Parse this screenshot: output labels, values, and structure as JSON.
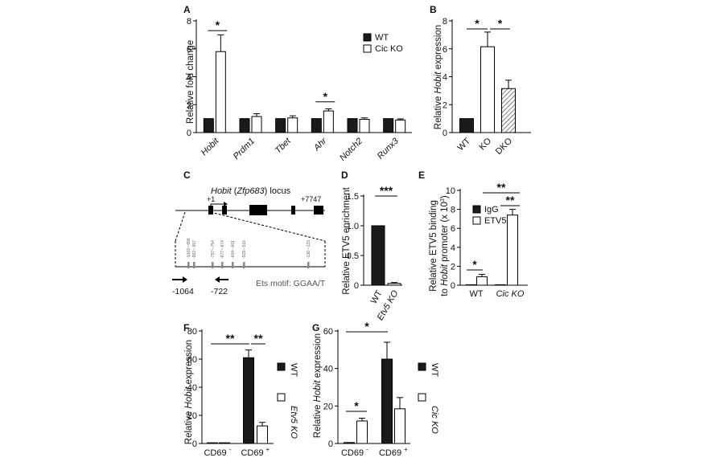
{
  "panels": {
    "A": {
      "letter": "A",
      "ylabel": "Relative fold change",
      "ylim": [
        0,
        8
      ],
      "yticks": [
        "0",
        "2",
        "4",
        "6",
        "8"
      ],
      "legend": [
        "WT",
        "Cic KO"
      ],
      "categories": [
        "Hobit",
        "Prdm1",
        "Tbet",
        "Ahr",
        "Notch2",
        "Runx3"
      ],
      "series": [
        {
          "name": "WT",
          "values": [
            1.0,
            1.0,
            1.0,
            1.0,
            1.0,
            1.0
          ],
          "errors": [
            0,
            0,
            0,
            0,
            0,
            0
          ],
          "color": "#1a1a1a"
        },
        {
          "name": "Cic KO",
          "values": [
            5.8,
            1.15,
            1.05,
            1.55,
            0.95,
            0.9
          ],
          "errors": [
            1.2,
            0.2,
            0.15,
            0.15,
            0.1,
            0.08
          ],
          "color": "#ffffff"
        }
      ],
      "sig": [
        "*",
        "*"
      ]
    },
    "B": {
      "letter": "B",
      "ylabel_pre": "Relative ",
      "ylabel_it": "Hobit",
      "ylabel_post": " expression",
      "ylim": [
        0,
        8
      ],
      "yticks": [
        "0",
        "2",
        "4",
        "6",
        "8"
      ],
      "categories": [
        "WT",
        "KO",
        "DKO"
      ],
      "values": [
        1.0,
        6.15,
        3.15
      ],
      "errors": [
        0,
        1.05,
        0.6
      ],
      "sig": [
        "*",
        "*"
      ]
    },
    "C": {
      "letter": "C",
      "locus_it": "Hobit",
      "locus_paren_open": " (",
      "locus_it2": "Zfp683",
      "locus_post": ") locus",
      "tss": "+1",
      "end": "+7747",
      "primer_left": "-1064",
      "primer_right": "-722",
      "motif": "Ets motif: GGAA/T",
      "site_labels": [
        "-1003~-998",
        "-962~-957",
        "-757~-754",
        "-677~-674",
        "-604~-601",
        "-519~-516",
        "-136~-133"
      ]
    },
    "D": {
      "letter": "D",
      "ylabel": "Relative ETV5 enrichment",
      "ylim": [
        0,
        1.5
      ],
      "yticks": [
        "0",
        "0.5",
        "1.0",
        "1.5"
      ],
      "categories": [
        "WT",
        "Etv5 KO"
      ],
      "values": [
        1.0,
        0.03
      ],
      "errors": [
        0,
        0.015
      ],
      "sig": [
        "***"
      ]
    },
    "E": {
      "letter": "E",
      "ylabel1": "Relative ETV5 binding",
      "ylabel2_pre": "to ",
      "ylabel2_it": "Hobit",
      "ylabel2_post": " promoter (x 10",
      "ylabel2_sup": "3",
      "ylabel2_end": ")",
      "ylim": [
        0,
        10
      ],
      "yticks": [
        "0",
        "2",
        "4",
        "6",
        "8",
        "10"
      ],
      "legend": [
        "IgG",
        "ETV5"
      ],
      "categories": [
        "WT",
        "Cic KO"
      ],
      "series": [
        {
          "name": "IgG",
          "values": [
            0.05,
            0.05
          ],
          "errors": [
            0,
            0
          ]
        },
        {
          "name": "ETV5",
          "values": [
            0.9,
            7.4
          ],
          "errors": [
            0.25,
            0.6
          ]
        }
      ],
      "sig": [
        "*",
        "**",
        "**"
      ]
    },
    "F": {
      "letter": "F",
      "ylabel_pre": "Relative ",
      "ylabel_it": "Hobit",
      "ylabel_post": " expression",
      "ylim": [
        0,
        80
      ],
      "yticks": [
        "0",
        "20",
        "40",
        "60",
        "80"
      ],
      "categories": [
        "CD69",
        "CD69"
      ],
      "cat_sup": [
        "-",
        "+"
      ],
      "legend": [
        "WT",
        "Etv5 KO"
      ],
      "series": [
        {
          "name": "WT",
          "values": [
            0.5,
            61
          ],
          "errors": [
            0,
            5.5
          ]
        },
        {
          "name": "Etv5 KO",
          "values": [
            0.5,
            12.5
          ],
          "errors": [
            0,
            2.5
          ]
        }
      ],
      "sig": [
        "**",
        "**"
      ]
    },
    "G": {
      "letter": "G",
      "ylabel_pre": "Relative ",
      "ylabel_it": "Hobit",
      "ylabel_post": " expression",
      "ylim": [
        0,
        60
      ],
      "yticks": [
        "0",
        "20",
        "40",
        "60"
      ],
      "categories": [
        "CD69",
        "CD69"
      ],
      "cat_sup": [
        "-",
        "+"
      ],
      "legend": [
        "WT",
        "Cic KO"
      ],
      "series": [
        {
          "name": "WT",
          "values": [
            0.5,
            45
          ],
          "errors": [
            0,
            9
          ]
        },
        {
          "name": "Cic KO",
          "values": [
            12,
            18.5
          ],
          "errors": [
            1.5,
            6
          ]
        }
      ],
      "sig": [
        "*",
        "*"
      ]
    }
  },
  "chart_data": [
    {
      "type": "bar",
      "panel": "A",
      "categories": [
        "Hobit",
        "Prdm1",
        "Tbet",
        "Ahr",
        "Notch2",
        "Runx3"
      ],
      "series": [
        {
          "name": "WT",
          "values": [
            1.0,
            1.0,
            1.0,
            1.0,
            1.0,
            1.0
          ]
        },
        {
          "name": "Cic KO",
          "values": [
            5.8,
            1.15,
            1.05,
            1.55,
            0.95,
            0.9
          ]
        }
      ],
      "ylabel": "Relative fold change",
      "ylim": [
        0,
        8
      ]
    },
    {
      "type": "bar",
      "panel": "B",
      "categories": [
        "WT",
        "KO",
        "DKO"
      ],
      "values": [
        1.0,
        6.15,
        3.15
      ],
      "ylabel": "Relative Hobit expression",
      "ylim": [
        0,
        8
      ]
    },
    {
      "type": "bar",
      "panel": "D",
      "categories": [
        "WT",
        "Etv5 KO"
      ],
      "values": [
        1.0,
        0.03
      ],
      "ylabel": "Relative ETV5 enrichment",
      "ylim": [
        0,
        1.5
      ]
    },
    {
      "type": "bar",
      "panel": "E",
      "categories": [
        "WT",
        "Cic KO"
      ],
      "series": [
        {
          "name": "IgG",
          "values": [
            0.05,
            0.05
          ]
        },
        {
          "name": "ETV5",
          "values": [
            0.9,
            7.4
          ]
        }
      ],
      "ylabel": "Relative ETV5 binding to Hobit promoter (x 10^3)",
      "ylim": [
        0,
        10
      ]
    },
    {
      "type": "bar",
      "panel": "F",
      "categories": [
        "CD69-",
        "CD69+"
      ],
      "series": [
        {
          "name": "WT",
          "values": [
            0.5,
            61
          ]
        },
        {
          "name": "Etv5 KO",
          "values": [
            0.5,
            12.5
          ]
        }
      ],
      "ylabel": "Relative Hobit expression",
      "ylim": [
        0,
        80
      ]
    },
    {
      "type": "bar",
      "panel": "G",
      "categories": [
        "CD69-",
        "CD69+"
      ],
      "series": [
        {
          "name": "WT",
          "values": [
            0.5,
            45
          ]
        },
        {
          "name": "Cic KO",
          "values": [
            12,
            18.5
          ]
        }
      ],
      "ylabel": "Relative Hobit expression",
      "ylim": [
        0,
        60
      ]
    }
  ]
}
